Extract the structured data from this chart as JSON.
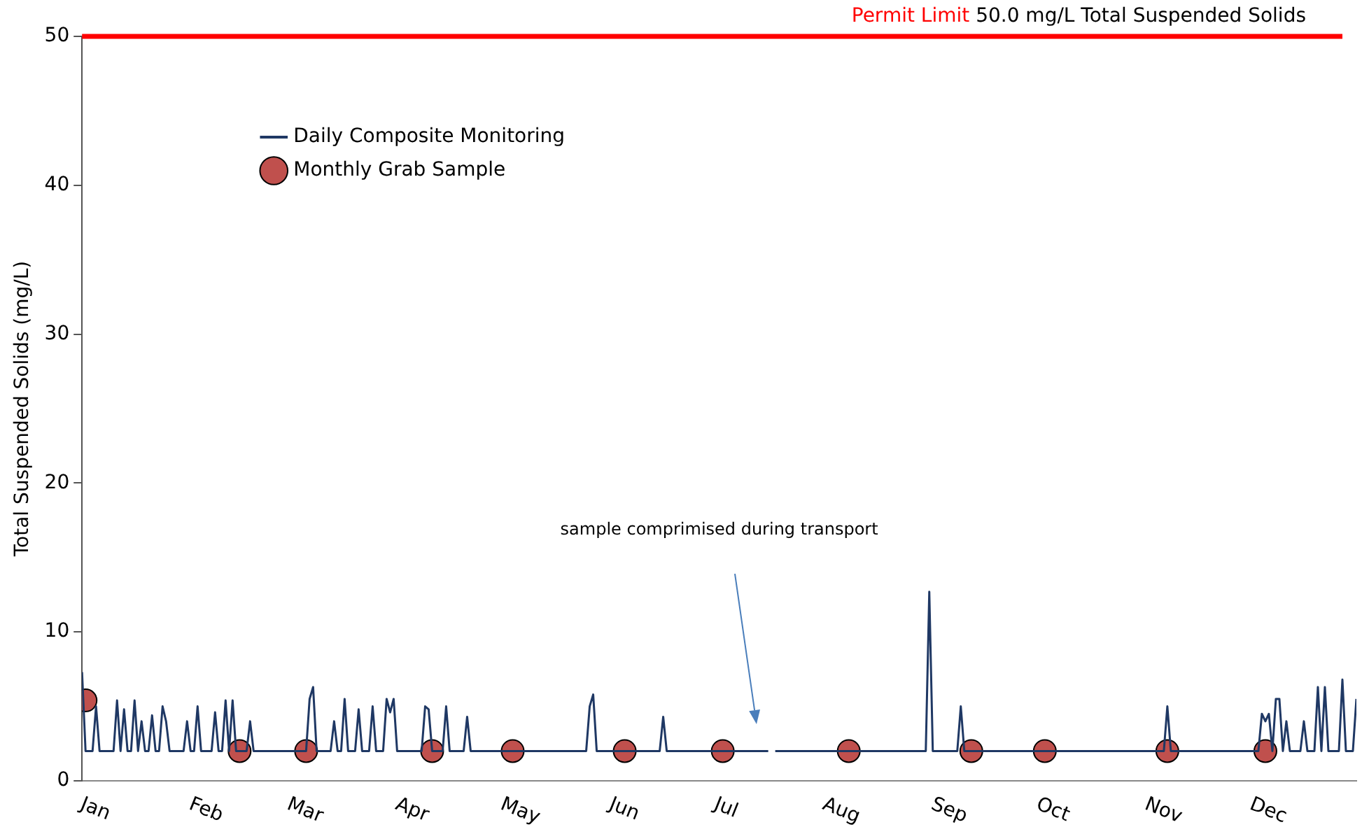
{
  "chart_data": {
    "type": "line",
    "ylabel": "Total Suspended Solids (mg/L)",
    "xlim": [
      "--01-01",
      "--12-31"
    ],
    "xticks": [
      {
        "value": "--01-01",
        "label": "Jan"
      },
      {
        "value": "--02-01",
        "label": "Feb"
      },
      {
        "value": "--03-01",
        "label": "Mar"
      },
      {
        "value": "--04-01",
        "label": "Apr"
      },
      {
        "value": "--05-01",
        "label": "May"
      },
      {
        "value": "--06-01",
        "label": "Jun"
      },
      {
        "value": "--07-01",
        "label": "Jul"
      },
      {
        "value": "--08-01",
        "label": "Aug"
      },
      {
        "value": "--09-01",
        "label": "Sep"
      },
      {
        "value": "--10-01",
        "label": "Oct"
      },
      {
        "value": "--11-01",
        "label": "Nov"
      },
      {
        "value": "--12-01",
        "label": "Dec"
      }
    ],
    "ylim": [
      0,
      50
    ],
    "yticks": [
      0,
      10,
      20,
      30,
      40,
      50
    ],
    "grid": false,
    "legend": "top left",
    "series": [
      {
        "name": "Daily Composite Monitoring",
        "color": "#1f3864",
        "marker": "none",
        "line_style": "solid",
        "x": [
          "--01-01",
          "--01-02",
          "--01-04",
          "--01-05",
          "--01-06",
          "--01-10",
          "--01-11",
          "--01-12",
          "--01-13",
          "--01-14",
          "--01-15",
          "--01-16",
          "--01-17",
          "--01-18",
          "--01-19",
          "--01-20",
          "--01-21",
          "--01-22",
          "--01-23",
          "--01-24",
          "--01-25",
          "--01-26",
          "--01-30",
          "--01-31",
          "--02-01",
          "--02-02",
          "--02-03",
          "--02-04",
          "--02-07",
          "--02-08",
          "--02-09",
          "--02-10",
          "--02-11",
          "--02-12",
          "--02-13",
          "--02-14",
          "--02-17",
          "--02-18",
          "--02-19",
          "--03-06",
          "--03-07",
          "--03-08",
          "--03-09",
          "--03-13",
          "--03-14",
          "--03-15",
          "--03-16",
          "--03-17",
          "--03-18",
          "--03-20",
          "--03-21",
          "--03-22",
          "--03-24",
          "--03-25",
          "--03-26",
          "--03-28",
          "--03-29",
          "--03-30",
          "--03-31",
          "--04-01",
          "--04-08",
          "--04-09",
          "--04-10",
          "--04-11",
          "--04-14",
          "--04-15",
          "--04-16",
          "--04-20",
          "--04-21",
          "--04-22",
          "--05-25",
          "--05-26",
          "--05-27",
          "--05-28",
          "--06-15",
          "--06-16",
          "--06-17",
          "--07-16",
          "--07-17",
          "--07-18",
          "--08-30",
          "--08-31",
          "--09-01",
          "--09-08",
          "--09-09",
          "--09-10",
          "--11-06",
          "--11-07",
          "--11-08",
          "--12-03",
          "--12-04",
          "--12-05",
          "--12-06",
          "--12-07",
          "--12-08",
          "--12-09",
          "--12-10",
          "--12-11",
          "--12-12",
          "--12-15",
          "--12-16",
          "--12-17",
          "--12-19",
          "--12-20",
          "--12-21",
          "--12-22",
          "--12-23",
          "--12-26",
          "--12-27",
          "--12-28",
          "--12-30",
          "--12-31"
        ],
        "values": [
          7.3,
          2.0,
          2.0,
          5.0,
          2.0,
          2.0,
          5.4,
          2.0,
          4.8,
          2.0,
          2.0,
          5.4,
          2.0,
          4.0,
          2.0,
          2.0,
          4.4,
          2.0,
          2.0,
          5.0,
          4.0,
          2.0,
          2.0,
          4.0,
          2.0,
          2.0,
          5.0,
          2.0,
          2.0,
          4.6,
          2.0,
          2.0,
          5.4,
          2.0,
          5.4,
          2.0,
          2.0,
          4.0,
          2.0,
          2.0,
          5.5,
          6.3,
          2.0,
          2.0,
          4.0,
          2.0,
          2.0,
          5.5,
          2.0,
          2.0,
          4.8,
          2.0,
          2.0,
          5.0,
          2.0,
          2.0,
          5.5,
          4.6,
          5.5,
          2.0,
          2.0,
          5.0,
          4.8,
          2.0,
          2.0,
          5.0,
          2.0,
          2.0,
          4.3,
          2.0,
          2.0,
          5.0,
          5.8,
          2.0,
          2.0,
          4.3,
          2.0,
          2.0,
          null,
          2.0,
          2.0,
          12.7,
          2.0,
          2.0,
          5.0,
          2.0,
          2.0,
          5.0,
          2.0,
          2.0,
          4.5,
          4.0,
          4.5,
          2.0,
          5.5,
          5.5,
          2.0,
          4.0,
          2.0,
          2.0,
          4.0,
          2.0,
          2.0,
          6.3,
          2.0,
          6.3,
          2.0,
          2.0,
          6.8,
          2.0,
          2.0,
          5.5
        ]
      },
      {
        "name": "Monthly Grab Sample",
        "type": "scatter",
        "color": "#c0504d",
        "marker": "circle",
        "x": [
          "--01-02",
          "--02-15",
          "--03-06",
          "--04-11",
          "--05-04",
          "--06-05",
          "--07-03",
          "--08-08",
          "--09-12",
          "--10-03",
          "--11-07",
          "--12-05"
        ],
        "values": [
          5.4,
          2.0,
          2.0,
          2.0,
          2.0,
          2.0,
          2.0,
          2.0,
          2.0,
          2.0,
          2.0,
          2.0
        ]
      }
    ],
    "ref_lines": [
      {
        "axis": "y",
        "value": 50,
        "label": "Permit Limit 50.0 mg/L Total Suspended Solids",
        "color": "#ff0000",
        "line_style": "solid"
      }
    ],
    "annotations": [
      "sample comprimised during transport"
    ]
  }
}
